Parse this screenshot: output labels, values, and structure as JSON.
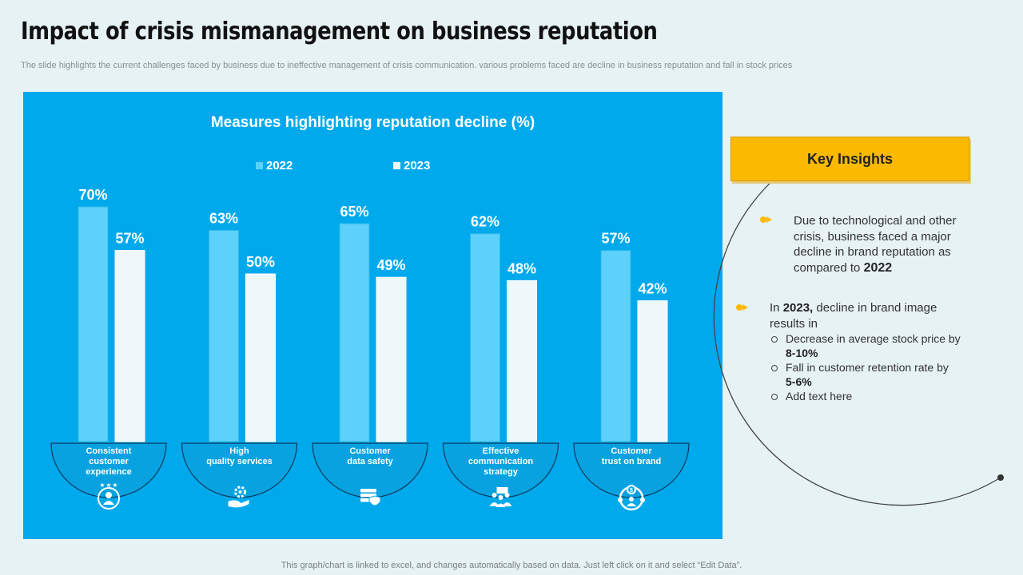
{
  "page": {
    "title": "Impact of crisis mismanagement on business reputation",
    "subtitle": "The slide highlights the current challenges faced by business due to ineffective management of crisis communication. various problems faced are decline in business reputation and fall in stock prices",
    "footer": "This graph/chart is linked to excel,  and changes automatically based on data. Just left click on it and select “Edit Data”."
  },
  "colors": {
    "panel": "#00a9ec",
    "series_2022": "#5bd1fb",
    "series_2023": "#eef7f9",
    "accent": "#fbb900"
  },
  "chart_data": {
    "type": "bar",
    "title": "Measures highlighting reputation decline (%)",
    "categories": [
      "Consistent customer experience",
      "High quality services",
      "Customer data safety",
      "Effective communication strategy",
      "Customer trust on brand"
    ],
    "category_lines": [
      [
        "Consistent",
        "customer",
        "experience"
      ],
      [
        "High",
        "quality services"
      ],
      [
        "Customer",
        "data safety"
      ],
      [
        "Effective",
        "communication",
        "strategy"
      ],
      [
        "Customer",
        "trust on brand"
      ]
    ],
    "category_icons": [
      "customer-star-icon",
      "hand-gear-icon",
      "server-shield-icon",
      "team-presentation-icon",
      "dollar-people-icon"
    ],
    "series": [
      {
        "name": "2022",
        "values": [
          70,
          63,
          65,
          62,
          57
        ],
        "labels": [
          "70%",
          "63%",
          "65%",
          "62%",
          "57%"
        ]
      },
      {
        "name": "2023",
        "values": [
          57,
          50,
          49,
          48,
          42
        ],
        "labels": [
          "57%",
          "50%",
          "49%",
          "48%",
          "42%"
        ]
      }
    ],
    "ylim": [
      0,
      100
    ],
    "xlabel": "",
    "ylabel": "",
    "legend_position": "top-center",
    "grid": false
  },
  "insights": {
    "header": "Key Insights",
    "first": {
      "text": "Due to technological and other crisis, business faced a major decline in brand reputation as compared to",
      "year": "2022"
    },
    "second": {
      "prefix": "In",
      "year": "2023,",
      "text": "decline in brand image results in",
      "subitems": [
        {
          "text": "Decrease in average stock price by",
          "value": "8-10%"
        },
        {
          "text": "Fall in customer retention rate by",
          "value": "5-6%"
        },
        {
          "text": "Add text here",
          "value": ""
        }
      ]
    }
  }
}
